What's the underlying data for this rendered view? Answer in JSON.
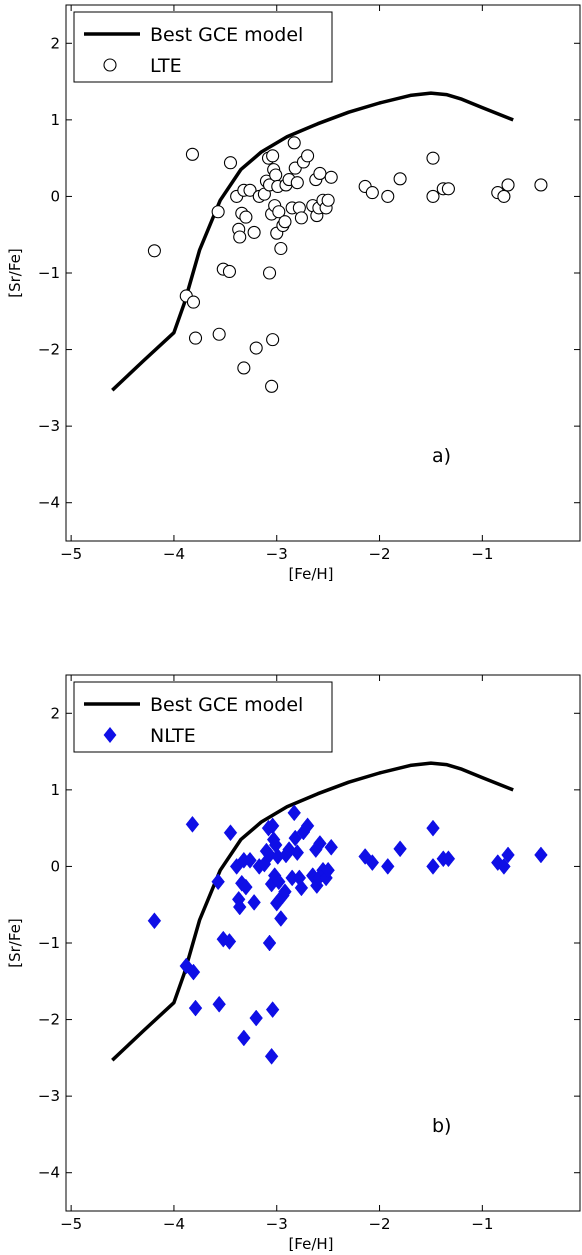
{
  "chart_data": [
    {
      "type": "scatter",
      "panel_label": "a)",
      "xlabel": "[Fe/H]",
      "ylabel": "[Sr/Fe]",
      "xlim": [
        -5.05,
        -0.05
      ],
      "ylim": [
        -4.5,
        2.5
      ],
      "xticks": [
        -5,
        -4,
        -3,
        -2,
        -1
      ],
      "xtick_labels": [
        "−5",
        "−4",
        "−3",
        "−2",
        "−1"
      ],
      "yticks": [
        -4,
        -3,
        -2,
        -1,
        0,
        1,
        2
      ],
      "ytick_labels": [
        "−4",
        "−3",
        "−2",
        "−1",
        "0",
        "1",
        "2"
      ],
      "legend_position": "top-left",
      "model_curve": {
        "name": "Best GCE model",
        "color": "#000000",
        "x": [
          -4.6,
          -4.3,
          -4.0,
          -3.9,
          -3.75,
          -3.55,
          -3.35,
          -3.15,
          -2.9,
          -2.6,
          -2.3,
          -2.0,
          -1.7,
          -1.5,
          -1.35,
          -1.2,
          -1.0,
          -0.7
        ],
        "y": [
          -2.53,
          -2.15,
          -1.78,
          -1.4,
          -0.7,
          -0.05,
          0.35,
          0.58,
          0.78,
          0.95,
          1.1,
          1.22,
          1.32,
          1.35,
          1.33,
          1.27,
          1.16,
          1.0
        ]
      },
      "series": [
        {
          "name": "LTE",
          "marker": "open-circle",
          "color": "#000000",
          "x": [
            -4.19,
            -3.82,
            -3.45,
            -3.57,
            -3.39,
            -3.32,
            -3.37,
            -3.36,
            -3.34,
            -3.3,
            -3.26,
            -3.22,
            -3.17,
            -3.12,
            -3.1,
            -3.08,
            -3.07,
            -3.05,
            -3.04,
            -3.03,
            -3.02,
            -3.01,
            -3.0,
            -2.99,
            -2.98,
            -2.96,
            -2.94,
            -2.92,
            -2.91,
            -2.88,
            -2.85,
            -2.83,
            -2.82,
            -2.8,
            -2.78,
            -2.76,
            -2.74,
            -2.7,
            -2.65,
            -2.62,
            -2.61,
            -2.59,
            -2.58,
            -2.55,
            -2.52,
            -2.5,
            -2.47,
            -2.14,
            -2.07,
            -1.92,
            -1.8,
            -1.48,
            -1.48,
            -1.38,
            -1.33,
            -0.85,
            -0.79,
            -0.75,
            -0.43,
            -3.52,
            -3.46,
            -3.07,
            -3.88,
            -3.81,
            -3.79,
            -3.56,
            -3.2,
            -3.04,
            -3.32,
            -3.05
          ],
          "y": [
            -0.71,
            0.55,
            0.44,
            -0.2,
            0.0,
            0.08,
            -0.43,
            -0.53,
            -0.22,
            -0.27,
            0.08,
            -0.47,
            0.0,
            0.03,
            0.2,
            0.5,
            0.15,
            -0.23,
            0.53,
            0.35,
            -0.12,
            0.28,
            -0.48,
            0.13,
            -0.2,
            -0.68,
            -0.38,
            -0.33,
            0.15,
            0.22,
            -0.15,
            0.7,
            0.37,
            0.18,
            -0.15,
            -0.28,
            0.45,
            0.53,
            -0.12,
            0.22,
            -0.25,
            -0.15,
            0.3,
            -0.05,
            -0.15,
            -0.05,
            0.25,
            0.13,
            0.05,
            0.0,
            0.23,
            0.5,
            0.0,
            0.1,
            0.1,
            0.05,
            0.0,
            0.15,
            0.15,
            -0.95,
            -0.98,
            -1.0,
            -1.3,
            -1.38,
            -1.85,
            -1.8,
            -1.98,
            -1.87,
            -2.24,
            -2.48
          ]
        }
      ]
    },
    {
      "type": "scatter",
      "panel_label": "b)",
      "xlabel": "[Fe/H]",
      "ylabel": "[Sr/Fe]",
      "xlim": [
        -5.05,
        -0.05
      ],
      "ylim": [
        -4.5,
        2.5
      ],
      "xticks": [
        -5,
        -4,
        -3,
        -2,
        -1
      ],
      "xtick_labels": [
        "−5",
        "−4",
        "−3",
        "−2",
        "−1"
      ],
      "yticks": [
        -4,
        -3,
        -2,
        -1,
        0,
        1,
        2
      ],
      "ytick_labels": [
        "−4",
        "−3",
        "−2",
        "−1",
        "0",
        "1",
        "2"
      ],
      "legend_position": "top-left",
      "model_curve": {
        "name": "Best GCE model",
        "color": "#000000",
        "x": [
          -4.6,
          -4.3,
          -4.0,
          -3.9,
          -3.75,
          -3.55,
          -3.35,
          -3.15,
          -2.9,
          -2.6,
          -2.3,
          -2.0,
          -1.7,
          -1.5,
          -1.35,
          -1.2,
          -1.0,
          -0.7
        ],
        "y": [
          -2.53,
          -2.15,
          -1.78,
          -1.4,
          -0.7,
          -0.05,
          0.35,
          0.58,
          0.78,
          0.95,
          1.1,
          1.22,
          1.32,
          1.35,
          1.33,
          1.27,
          1.16,
          1.0
        ]
      },
      "series": [
        {
          "name": "NLTE",
          "marker": "filled-diamond",
          "color": "#0f0fe6",
          "x": [
            -4.19,
            -3.82,
            -3.45,
            -3.57,
            -3.39,
            -3.32,
            -3.37,
            -3.36,
            -3.34,
            -3.3,
            -3.26,
            -3.22,
            -3.17,
            -3.12,
            -3.1,
            -3.08,
            -3.07,
            -3.05,
            -3.04,
            -3.03,
            -3.02,
            -3.01,
            -3.0,
            -2.99,
            -2.98,
            -2.96,
            -2.94,
            -2.92,
            -2.91,
            -2.88,
            -2.85,
            -2.83,
            -2.82,
            -2.8,
            -2.78,
            -2.76,
            -2.74,
            -2.7,
            -2.65,
            -2.62,
            -2.61,
            -2.59,
            -2.58,
            -2.55,
            -2.52,
            -2.5,
            -2.47,
            -2.14,
            -2.07,
            -1.92,
            -1.8,
            -1.48,
            -1.48,
            -1.38,
            -1.33,
            -0.85,
            -0.79,
            -0.75,
            -0.43,
            -3.52,
            -3.46,
            -3.07,
            -3.88,
            -3.81,
            -3.79,
            -3.56,
            -3.2,
            -3.04,
            -3.32,
            -3.05
          ],
          "y": [
            -0.71,
            0.55,
            0.44,
            -0.2,
            0.0,
            0.08,
            -0.43,
            -0.53,
            -0.22,
            -0.27,
            0.08,
            -0.47,
            0.0,
            0.03,
            0.2,
            0.5,
            0.15,
            -0.23,
            0.53,
            0.35,
            -0.12,
            0.28,
            -0.48,
            0.13,
            -0.2,
            -0.68,
            -0.38,
            -0.33,
            0.15,
            0.22,
            -0.15,
            0.7,
            0.37,
            0.18,
            -0.15,
            -0.28,
            0.45,
            0.53,
            -0.12,
            0.22,
            -0.25,
            -0.15,
            0.3,
            -0.05,
            -0.15,
            -0.05,
            0.25,
            0.13,
            0.05,
            0.0,
            0.23,
            0.5,
            0.0,
            0.1,
            0.1,
            0.05,
            0.0,
            0.15,
            0.15,
            -0.95,
            -0.98,
            -1.0,
            -1.3,
            -1.38,
            -1.85,
            -1.8,
            -1.98,
            -1.87,
            -2.24,
            -2.48
          ]
        }
      ]
    }
  ]
}
